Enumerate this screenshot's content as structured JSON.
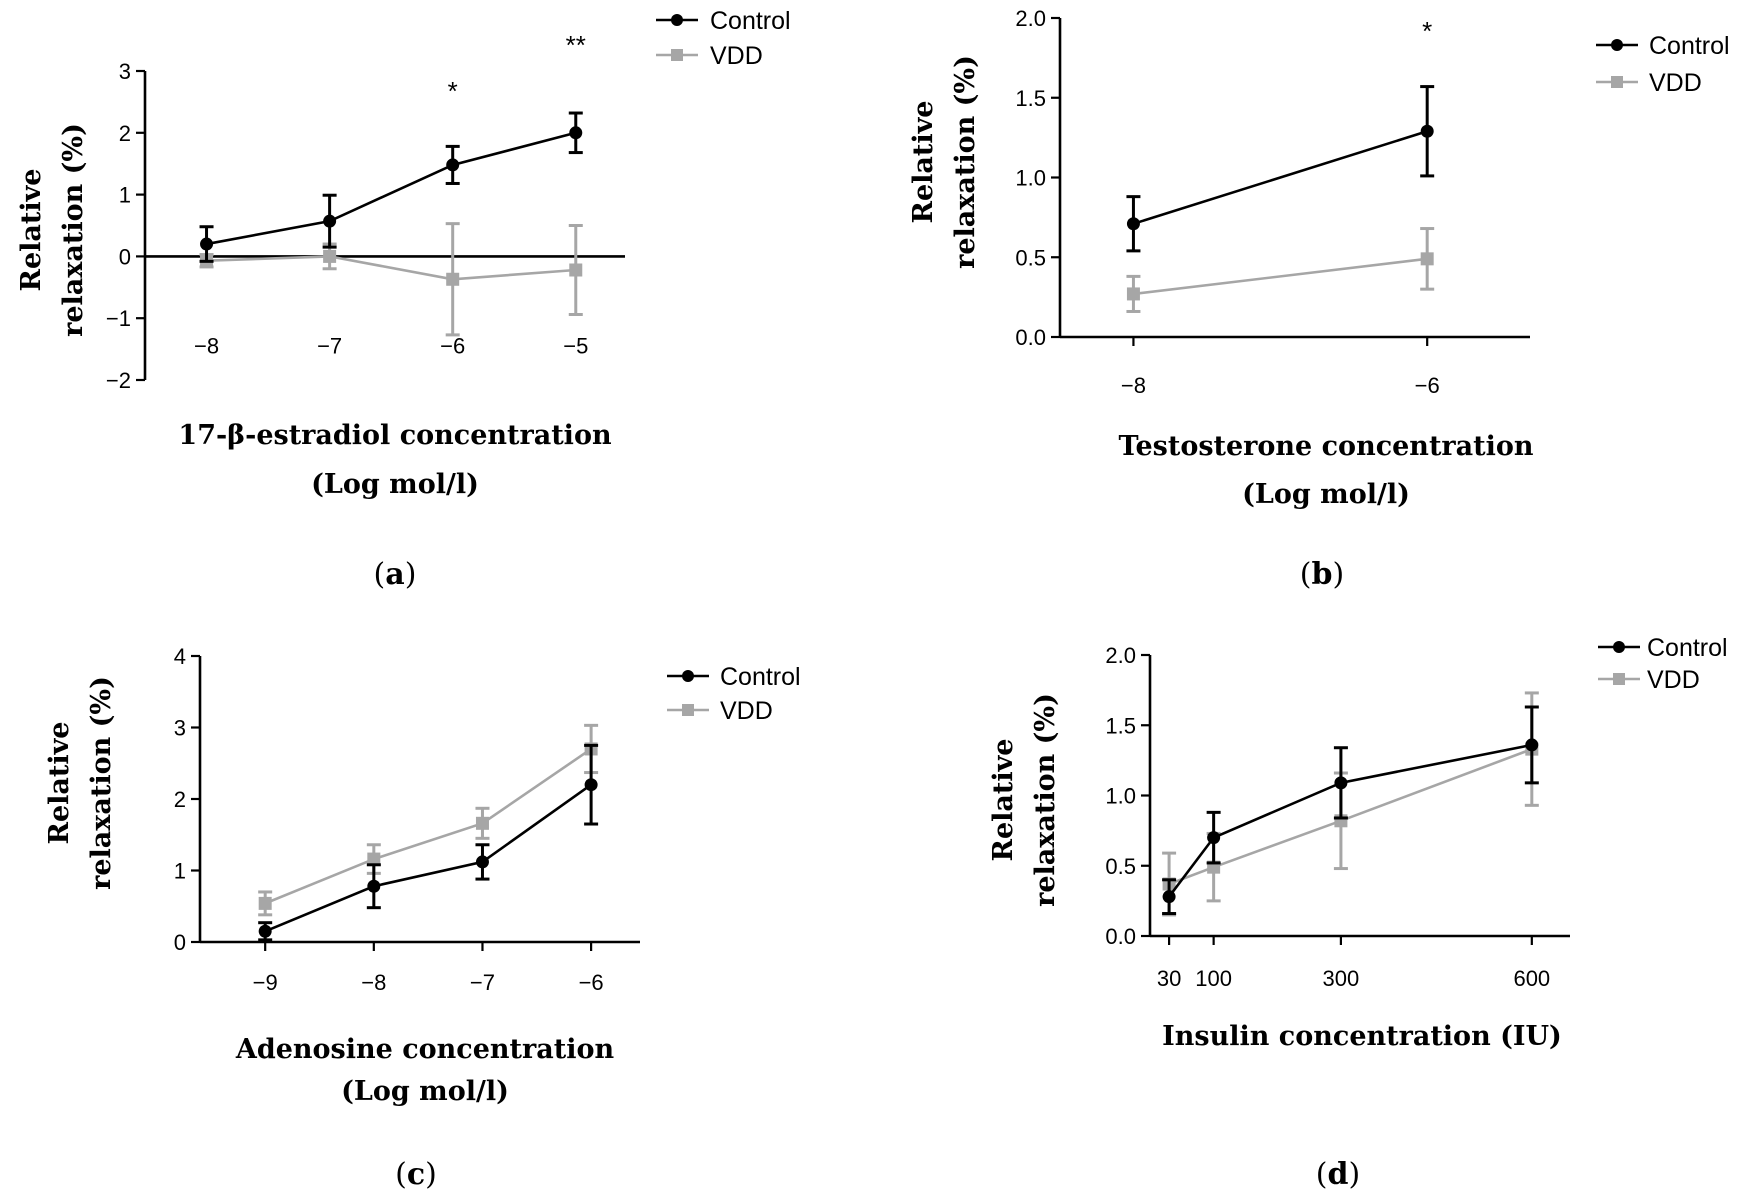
{
  "figure": {
    "legend": [
      "Control",
      "VDD"
    ]
  },
  "colors": {
    "control": "#000000",
    "vdd": "#a6a6a6"
  },
  "chart_data": [
    {
      "id": "a",
      "panel_label": "a",
      "type": "line",
      "xlabel": [
        "17-β-estradiol concentration",
        "(Log mol/l)"
      ],
      "ylabel": [
        "Relative",
        "relaxation (%)"
      ],
      "x_categories": [
        "−8",
        "−7",
        "−6",
        "−5"
      ],
      "x_values": [
        -8,
        -7,
        -6,
        -5
      ],
      "xlim": [
        -8.5,
        -4.6
      ],
      "ylim": [
        -2,
        3
      ],
      "y_ticks": [
        3,
        2,
        1,
        0,
        -1,
        -2
      ],
      "y_tick_labels": [
        "3",
        "2",
        "1",
        "0",
        "−1",
        "−2"
      ],
      "x_tick_labels_position": "inside",
      "zero_line": true,
      "series": [
        {
          "name": "Control",
          "values": [
            0.2,
            0.57,
            1.48,
            2.0
          ],
          "errors": [
            0.28,
            0.42,
            0.3,
            0.32
          ]
        },
        {
          "name": "VDD",
          "values": [
            -0.07,
            0.0,
            -0.37,
            -0.22
          ],
          "errors": [
            0.1,
            0.2,
            0.9,
            0.72
          ]
        }
      ],
      "annotations": [
        {
          "text": "*",
          "x": -6
        },
        {
          "text": "**",
          "x": -5
        }
      ]
    },
    {
      "id": "b",
      "panel_label": "b",
      "type": "line",
      "xlabel": [
        "Testosterone concentration",
        "(Log mol/l)"
      ],
      "ylabel": [
        "Relative",
        "relaxation (%)"
      ],
      "x_categories": [
        "−8",
        "−6"
      ],
      "x_values": [
        -8,
        -6
      ],
      "xlim": [
        -8.5,
        -5.3
      ],
      "ylim": [
        0,
        2.0
      ],
      "y_ticks": [
        0,
        0.5,
        1.0,
        1.5,
        2.0
      ],
      "y_tick_labels": [
        "0.0",
        "0.5",
        "1.0",
        "1.5",
        "2.0"
      ],
      "x_tick_labels_position": "below",
      "zero_line": false,
      "series": [
        {
          "name": "Control",
          "values": [
            0.71,
            1.29
          ],
          "errors": [
            0.17,
            0.28
          ]
        },
        {
          "name": "VDD",
          "values": [
            0.27,
            0.49
          ],
          "errors": [
            0.11,
            0.19
          ]
        }
      ],
      "annotations": [
        {
          "text": "*",
          "x": -6
        }
      ]
    },
    {
      "id": "c",
      "panel_label": "c",
      "type": "line",
      "xlabel": [
        "Adenosine concentration",
        "(Log mol/l)"
      ],
      "ylabel": [
        "Relative",
        "relaxation (%)"
      ],
      "x_categories": [
        "−9",
        "−8",
        "−7",
        "−6"
      ],
      "x_values": [
        -9,
        -8,
        -7,
        -6
      ],
      "xlim": [
        -9.6,
        -5.55
      ],
      "ylim": [
        0,
        4
      ],
      "y_ticks": [
        0,
        1,
        2,
        3,
        4
      ],
      "y_tick_labels": [
        "0",
        "1",
        "2",
        "3",
        "4"
      ],
      "x_tick_labels_position": "below",
      "zero_line": false,
      "series": [
        {
          "name": "Control",
          "values": [
            0.15,
            0.78,
            1.12,
            2.2
          ],
          "errors": [
            0.12,
            0.3,
            0.24,
            0.55
          ]
        },
        {
          "name": "VDD",
          "values": [
            0.54,
            1.16,
            1.66,
            2.7
          ],
          "errors": [
            0.16,
            0.2,
            0.21,
            0.33
          ]
        }
      ],
      "annotations": []
    },
    {
      "id": "d",
      "panel_label": "d",
      "type": "line",
      "xlabel": [
        "Insulin concentration (IU)"
      ],
      "ylabel": [
        "Relative",
        "relaxation (%)"
      ],
      "x_categories": [
        "30",
        "100",
        "300",
        "600"
      ],
      "x_values": [
        30,
        100,
        300,
        600
      ],
      "xlim": [
        0,
        660
      ],
      "ylim": [
        0,
        2.0
      ],
      "y_ticks": [
        0,
        0.5,
        1.0,
        1.5,
        2.0
      ],
      "y_tick_labels": [
        "0.0",
        "0.5",
        "1.0",
        "1.5",
        "2.0"
      ],
      "x_tick_labels_position": "below",
      "zero_line": false,
      "series": [
        {
          "name": "Control",
          "values": [
            0.28,
            0.7,
            1.09,
            1.36
          ],
          "errors": [
            0.12,
            0.18,
            0.25,
            0.27
          ]
        },
        {
          "name": "VDD",
          "values": [
            0.37,
            0.49,
            0.82,
            1.33
          ],
          "errors": [
            0.22,
            0.24,
            0.34,
            0.4
          ]
        }
      ],
      "annotations": []
    }
  ]
}
